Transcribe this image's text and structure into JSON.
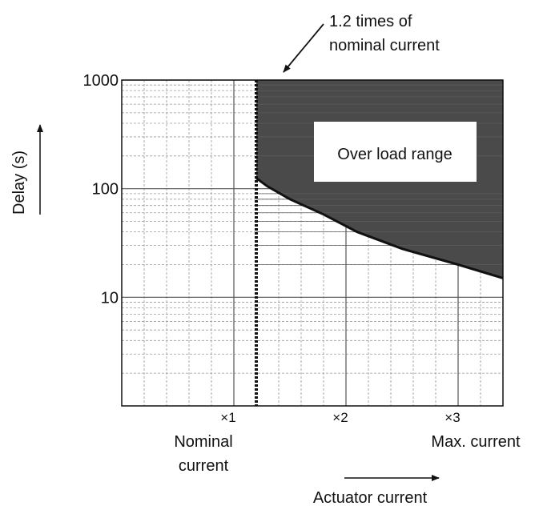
{
  "chart_data": {
    "type": "area",
    "title": "",
    "xlabel": "Actuator current",
    "ylabel": "Delay (s)",
    "y_scale": "log",
    "ylim": [
      1,
      1000
    ],
    "xlim": [
      0,
      3.4
    ],
    "grid": true,
    "y_ticks": [
      {
        "value": 1000,
        "label": "1000"
      },
      {
        "value": 100,
        "label": "100"
      },
      {
        "value": 10,
        "label": "10"
      }
    ],
    "x_ticks": [
      {
        "value": 1,
        "label": "×1"
      },
      {
        "value": 2,
        "label": "×2"
      },
      {
        "value": 3,
        "label": "×3"
      }
    ],
    "x_tick_captions": {
      "nominal": "Nominal current",
      "max": "Max. current"
    },
    "threshold": {
      "x": 1.2,
      "annotation": "1.2 times of nominal current"
    },
    "region": {
      "label": "Over load range",
      "color": "#4a4a4a",
      "boundary": {
        "x": [
          1.2,
          1.2,
          1.3,
          1.5,
          1.8,
          2.1,
          2.5,
          3.0,
          3.4
        ],
        "y": [
          1000,
          125,
          105,
          80,
          58,
          40,
          28,
          20,
          15
        ]
      }
    }
  }
}
